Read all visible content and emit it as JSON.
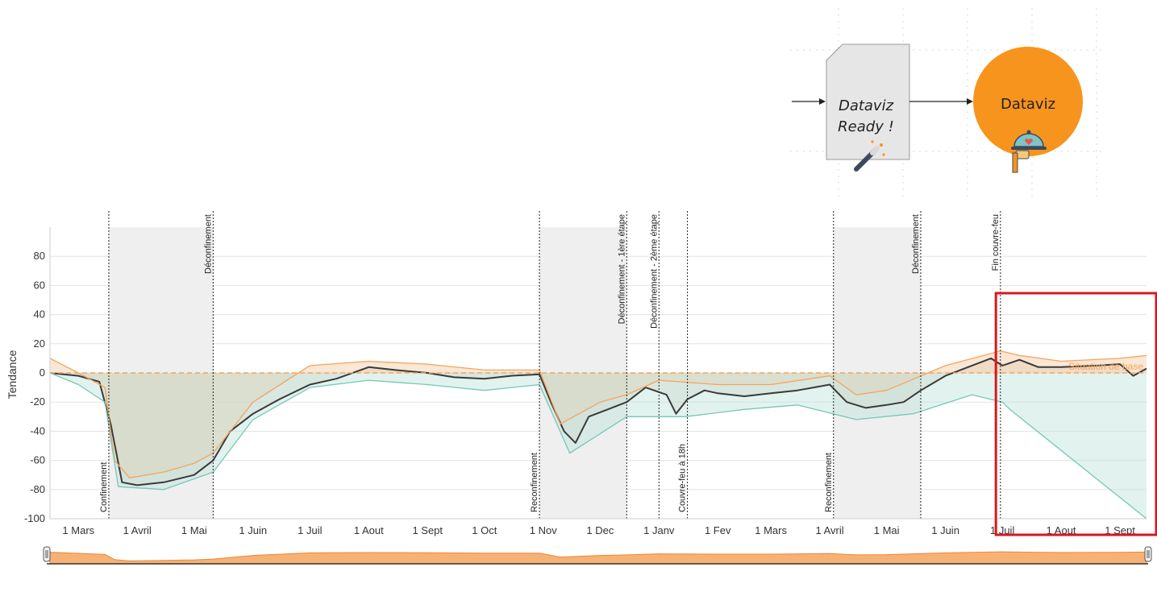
{
  "diagram": {
    "card_line1": "Dataviz",
    "card_line2": "Ready !",
    "circle_label": "Dataviz",
    "wand_icon": "magic-wand-icon",
    "serving_icon": "serving-tray-icon",
    "colors": {
      "card": "#e6e6e6",
      "circle": "#f7941d",
      "arrow": "#222222"
    }
  },
  "chart_data": {
    "type": "line",
    "ylabel": "Tendance",
    "ylim": [
      -100,
      100
    ],
    "yticks": [
      80,
      60,
      40,
      20,
      0,
      -20,
      -40,
      -60,
      -80,
      -100
    ],
    "x_range": [
      "2020-02-15",
      "2021-09-15"
    ],
    "xticks": [
      {
        "date": "2020-03-01",
        "label": "1 Mars"
      },
      {
        "date": "2020-04-01",
        "label": "1 Avril"
      },
      {
        "date": "2020-05-01",
        "label": "1 Mai"
      },
      {
        "date": "2020-06-01",
        "label": "1 Juin"
      },
      {
        "date": "2020-07-01",
        "label": "1 Juil"
      },
      {
        "date": "2020-08-01",
        "label": "1 Aout"
      },
      {
        "date": "2020-09-01",
        "label": "1 Sept"
      },
      {
        "date": "2020-10-01",
        "label": "1 Oct"
      },
      {
        "date": "2020-11-01",
        "label": "1 Nov"
      },
      {
        "date": "2020-12-01",
        "label": "1 Dec"
      },
      {
        "date": "2021-01-01",
        "label": "1 Janv"
      },
      {
        "date": "2021-02-01",
        "label": "1 Fev"
      },
      {
        "date": "2021-03-01",
        "label": "1 Mars"
      },
      {
        "date": "2021-04-01",
        "label": "1 Avril"
      },
      {
        "date": "2021-05-01",
        "label": "1 Mai"
      },
      {
        "date": "2021-06-01",
        "label": "1 Juin"
      },
      {
        "date": "2021-07-01",
        "label": "1 Juil"
      },
      {
        "date": "2021-08-01",
        "label": "1 Aout"
      },
      {
        "date": "2021-09-01",
        "label": "1 Sept"
      }
    ],
    "shaded_periods": [
      {
        "start": "2020-03-17",
        "end": "2020-05-11"
      },
      {
        "start": "2020-10-30",
        "end": "2020-12-15"
      },
      {
        "start": "2021-04-03",
        "end": "2021-05-19"
      }
    ],
    "events": [
      {
        "date": "2020-03-17",
        "label": "Confinement",
        "position": "bottom"
      },
      {
        "date": "2020-05-11",
        "label": "Déconfinement",
        "position": "top"
      },
      {
        "date": "2020-10-30",
        "label": "Reconfinement",
        "position": "bottom"
      },
      {
        "date": "2020-12-15",
        "label": "Déconfinement - 1ère étape",
        "position": "top"
      },
      {
        "date": "2021-01-01",
        "label": "Déconfinement - 2ème étape",
        "position": "top"
      },
      {
        "date": "2021-01-16",
        "label": "Couvre-feu à 18h",
        "position": "bottom"
      },
      {
        "date": "2021-04-03",
        "label": "Reconfinement",
        "position": "bottom"
      },
      {
        "date": "2021-05-19",
        "label": "Déconfinement",
        "position": "top"
      },
      {
        "date": "2021-06-30",
        "label": "Fin couvre-feu",
        "position": "top"
      }
    ],
    "baseline": {
      "value": 0,
      "label": "Situation de base"
    },
    "highlight_box": {
      "start": "2021-07-01",
      "end": "2021-09-15"
    },
    "series": [
      {
        "color": "#3a3a3a",
        "points": [
          [
            "2020-02-15",
            0
          ],
          [
            "2020-03-01",
            -2
          ],
          [
            "2020-03-12",
            -6
          ],
          [
            "2020-03-18",
            -35
          ],
          [
            "2020-03-24",
            -75
          ],
          [
            "2020-04-01",
            -77
          ],
          [
            "2020-04-15",
            -75
          ],
          [
            "2020-05-01",
            -70
          ],
          [
            "2020-05-11",
            -60
          ],
          [
            "2020-05-20",
            -40
          ],
          [
            "2020-06-01",
            -28
          ],
          [
            "2020-06-15",
            -18
          ],
          [
            "2020-07-01",
            -8
          ],
          [
            "2020-07-15",
            -4
          ],
          [
            "2020-08-01",
            4
          ],
          [
            "2020-08-15",
            2
          ],
          [
            "2020-09-01",
            0
          ],
          [
            "2020-09-15",
            -3
          ],
          [
            "2020-10-01",
            -4
          ],
          [
            "2020-10-15",
            -2
          ],
          [
            "2020-10-30",
            -1
          ],
          [
            "2020-11-05",
            -20
          ],
          [
            "2020-11-12",
            -40
          ],
          [
            "2020-11-18",
            -48
          ],
          [
            "2020-11-25",
            -30
          ],
          [
            "2020-12-05",
            -25
          ],
          [
            "2020-12-15",
            -20
          ],
          [
            "2020-12-25",
            -10
          ],
          [
            "2021-01-05",
            -15
          ],
          [
            "2021-01-10",
            -28
          ],
          [
            "2021-01-16",
            -18
          ],
          [
            "2021-01-25",
            -12
          ],
          [
            "2021-02-01",
            -14
          ],
          [
            "2021-02-15",
            -16
          ],
          [
            "2021-03-01",
            -14
          ],
          [
            "2021-03-15",
            -12
          ],
          [
            "2021-04-01",
            -8
          ],
          [
            "2021-04-10",
            -20
          ],
          [
            "2021-04-20",
            -24
          ],
          [
            "2021-05-01",
            -22
          ],
          [
            "2021-05-10",
            -20
          ],
          [
            "2021-05-19",
            -12
          ],
          [
            "2021-06-01",
            -2
          ],
          [
            "2021-06-15",
            5
          ],
          [
            "2021-06-25",
            10
          ],
          [
            "2021-07-01",
            5
          ],
          [
            "2021-07-10",
            9
          ],
          [
            "2021-07-20",
            4
          ],
          [
            "2021-08-01",
            4
          ],
          [
            "2021-08-20",
            5
          ],
          [
            "2021-09-01",
            6
          ],
          [
            "2021-09-08",
            -2
          ],
          [
            "2021-09-15",
            3
          ]
        ]
      },
      {
        "color": "#f7a35c",
        "points": [
          [
            "2020-02-15",
            10
          ],
          [
            "2020-03-01",
            0
          ],
          [
            "2020-03-15",
            -10
          ],
          [
            "2020-03-20",
            -60
          ],
          [
            "2020-03-28",
            -72
          ],
          [
            "2020-04-15",
            -68
          ],
          [
            "2020-05-01",
            -62
          ],
          [
            "2020-05-11",
            -55
          ],
          [
            "2020-06-01",
            -20
          ],
          [
            "2020-07-01",
            5
          ],
          [
            "2020-08-01",
            8
          ],
          [
            "2020-09-01",
            6
          ],
          [
            "2020-10-01",
            2
          ],
          [
            "2020-10-30",
            2
          ],
          [
            "2020-11-10",
            -35
          ],
          [
            "2020-12-01",
            -20
          ],
          [
            "2020-12-15",
            -15
          ],
          [
            "2021-01-01",
            -5
          ],
          [
            "2021-02-01",
            -8
          ],
          [
            "2021-03-01",
            -8
          ],
          [
            "2021-04-01",
            -2
          ],
          [
            "2021-04-15",
            -15
          ],
          [
            "2021-05-01",
            -12
          ],
          [
            "2021-06-01",
            5
          ],
          [
            "2021-06-30",
            15
          ],
          [
            "2021-07-10",
            12
          ],
          [
            "2021-08-01",
            8
          ],
          [
            "2021-09-01",
            10
          ],
          [
            "2021-09-15",
            12
          ]
        ]
      },
      {
        "color": "#76c7b7",
        "points": [
          [
            "2020-02-15",
            0
          ],
          [
            "2020-03-01",
            -8
          ],
          [
            "2020-03-15",
            -20
          ],
          [
            "2020-03-22",
            -78
          ],
          [
            "2020-04-15",
            -80
          ],
          [
            "2020-05-11",
            -68
          ],
          [
            "2020-06-01",
            -32
          ],
          [
            "2020-07-01",
            -10
          ],
          [
            "2020-08-01",
            -5
          ],
          [
            "2020-09-01",
            -8
          ],
          [
            "2020-10-01",
            -12
          ],
          [
            "2020-10-30",
            -8
          ],
          [
            "2020-11-15",
            -55
          ],
          [
            "2020-12-15",
            -30
          ],
          [
            "2021-01-15",
            -30
          ],
          [
            "2021-02-15",
            -25
          ],
          [
            "2021-03-15",
            -22
          ],
          [
            "2021-04-15",
            -32
          ],
          [
            "2021-05-15",
            -28
          ],
          [
            "2021-06-15",
            -15
          ],
          [
            "2021-07-01",
            -20
          ],
          [
            "2021-07-05",
            -25
          ],
          [
            "2021-09-15",
            -100
          ]
        ]
      }
    ]
  }
}
